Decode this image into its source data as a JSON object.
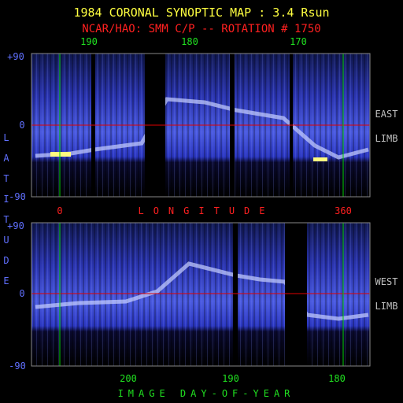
{
  "header": {
    "title": "1984 CORONAL SYNOPTIC MAP : 3.4 Rsun",
    "subtitle": "NCAR/HAO: SMM C/P -- ROTATION # 1750"
  },
  "top_axis": {
    "labels": [
      "190",
      "180",
      "170"
    ]
  },
  "panels": [
    {
      "lat_labels": [
        "+90",
        "0",
        "-90"
      ],
      "limb": [
        "EAST",
        "LIMB"
      ]
    },
    {
      "lat_labels": [
        "+90",
        "0",
        "-90"
      ],
      "limb": [
        "WEST",
        "LIMB"
      ]
    }
  ],
  "latitude_label": "LATITUDE",
  "longitude": {
    "labels": [
      "0",
      "360"
    ],
    "title": "LONGITUDE"
  },
  "bottom_axis": {
    "labels": [
      "200",
      "190",
      "180"
    ],
    "title": "IMAGE DAY-OF-YEAR"
  }
}
